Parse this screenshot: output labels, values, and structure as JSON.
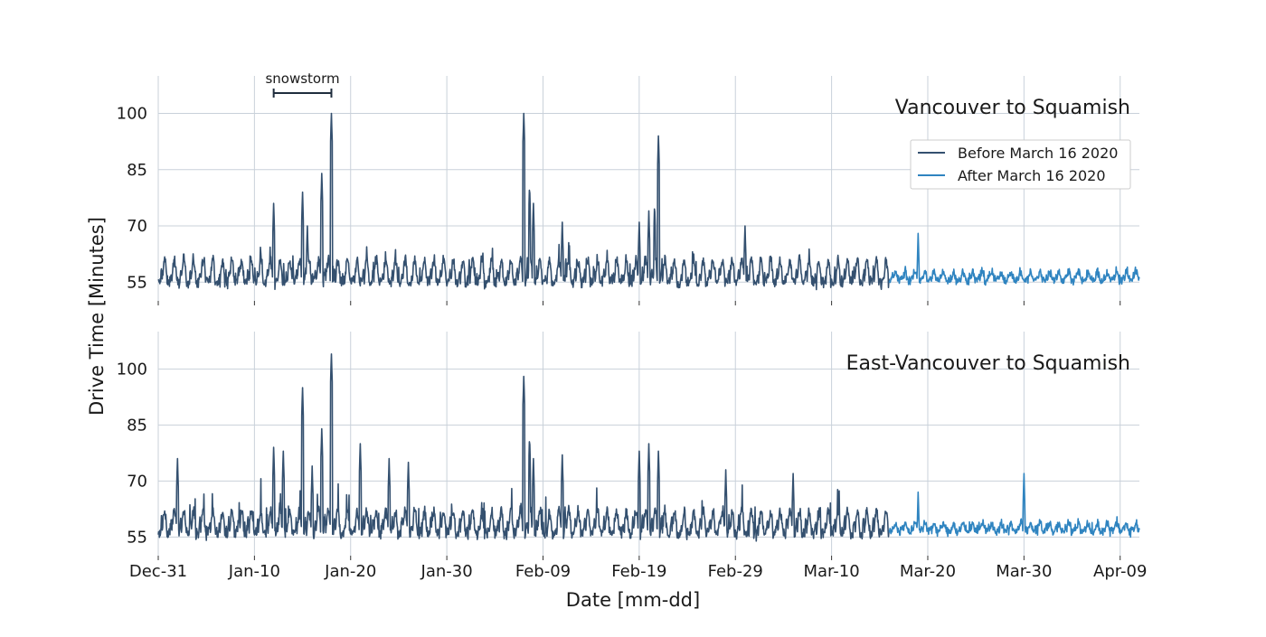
{
  "chart_data": {
    "type": "line",
    "xlabel": "Date [mm-dd]",
    "ylabel": "Drive Time [Minutes]",
    "x_ticks": [
      "Dec-31",
      "Jan-10",
      "Jan-20",
      "Jan-30",
      "Feb-09",
      "Feb-19",
      "Feb-29",
      "Mar-10",
      "Mar-20",
      "Mar-30",
      "Apr-09"
    ],
    "y_ticks": [
      55,
      70,
      85,
      100
    ],
    "ylim": [
      50,
      110
    ],
    "xlim": [
      "2019-12-31",
      "2020-04-11"
    ],
    "grid": true,
    "legend_position": "upper-right (top panel)",
    "series": [
      {
        "name": "Before March 16 2020",
        "color": "#34506f"
      },
      {
        "name": "After March 16 2020",
        "color": "#2f84c0"
      }
    ],
    "annotation": {
      "text": "snowstorm",
      "start": "2020-01-12",
      "end": "2020-01-18"
    },
    "panels": [
      {
        "title": "Vancouver to Squamish",
        "before": {
          "base": 55,
          "amp": 6,
          "am_amp": 3,
          "noise": 1.4,
          "tail": 1.5
        },
        "after": {
          "base": 55.5,
          "amp": 2.2,
          "am_amp": 1.2,
          "noise": 1.1,
          "tail": 0.5
        },
        "spikes": [
          {
            "date": "2020-01-12",
            "value": 76
          },
          {
            "date": "2020-01-14",
            "value": 62
          },
          {
            "date": "2020-01-15",
            "value": 79
          },
          {
            "date": "2020-01-15.5",
            "value": 70
          },
          {
            "date": "2020-01-17",
            "value": 84
          },
          {
            "date": "2020-01-18",
            "value": 100
          },
          {
            "date": "2020-02-07",
            "value": 100
          },
          {
            "date": "2020-02-07.6",
            "value": 81
          },
          {
            "date": "2020-02-08",
            "value": 76
          },
          {
            "date": "2020-02-11",
            "value": 71
          },
          {
            "date": "2020-02-19",
            "value": 71
          },
          {
            "date": "2020-02-20",
            "value": 74
          },
          {
            "date": "2020-02-20.6",
            "value": 76
          },
          {
            "date": "2020-02-21",
            "value": 94
          },
          {
            "date": "2020-03-01",
            "value": 70
          },
          {
            "date": "2020-03-19",
            "value": 68
          }
        ]
      },
      {
        "title": "East-Vancouver to Squamish",
        "before": {
          "base": 56,
          "amp": 6,
          "am_amp": 4,
          "noise": 1.6,
          "tail": 2.5
        },
        "after": {
          "base": 56.5,
          "amp": 2.2,
          "am_amp": 1.2,
          "noise": 1.1,
          "tail": 0.5
        },
        "spikes": [
          {
            "date": "2020-01-02",
            "value": 76
          },
          {
            "date": "2020-01-12",
            "value": 79
          },
          {
            "date": "2020-01-13",
            "value": 78
          },
          {
            "date": "2020-01-15",
            "value": 95
          },
          {
            "date": "2020-01-16",
            "value": 74
          },
          {
            "date": "2020-01-17",
            "value": 84
          },
          {
            "date": "2020-01-18",
            "value": 104
          },
          {
            "date": "2020-01-21",
            "value": 80
          },
          {
            "date": "2020-01-24",
            "value": 76
          },
          {
            "date": "2020-01-26",
            "value": 75
          },
          {
            "date": "2020-02-07",
            "value": 98
          },
          {
            "date": "2020-02-07.6",
            "value": 82
          },
          {
            "date": "2020-02-08",
            "value": 76
          },
          {
            "date": "2020-02-11",
            "value": 77
          },
          {
            "date": "2020-02-19",
            "value": 78
          },
          {
            "date": "2020-02-20",
            "value": 80
          },
          {
            "date": "2020-02-21",
            "value": 78
          },
          {
            "date": "2020-02-28",
            "value": 73
          },
          {
            "date": "2020-03-06",
            "value": 72
          },
          {
            "date": "2020-03-19",
            "value": 67
          },
          {
            "date": "2020-03-30",
            "value": 72
          }
        ]
      }
    ]
  }
}
